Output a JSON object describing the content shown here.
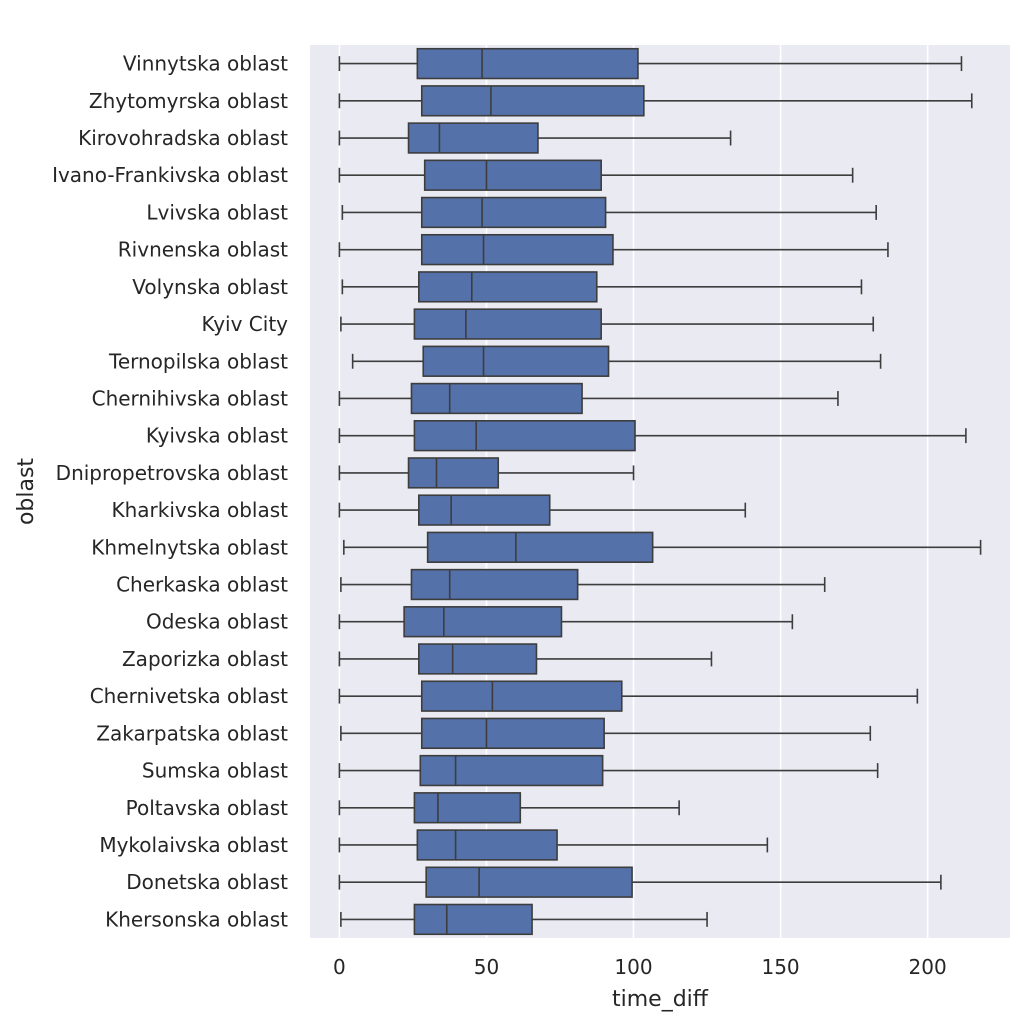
{
  "chart_data": {
    "type": "box",
    "orientation": "horizontal",
    "title": "",
    "xlabel": "time_diff",
    "ylabel": "oblast",
    "xlim": [
      -10,
      228
    ],
    "xticks": [
      0,
      50,
      100,
      150,
      200
    ],
    "xtick_labels": [
      "0",
      "50",
      "100",
      "150",
      "200"
    ],
    "grid": true,
    "colors": {
      "plot_background": "#eaeaf2",
      "grid": "#ffffff",
      "box_fill": "#5471a9",
      "line": "#3d3d3d"
    },
    "series": [
      {
        "name": "Vinnytska oblast",
        "min": 0,
        "q1": 26.5,
        "median": 48.5,
        "q3": 101.5,
        "max": 211.5
      },
      {
        "name": "Zhytomyrska oblast",
        "min": 0,
        "q1": 28,
        "median": 51.5,
        "q3": 103.5,
        "max": 215
      },
      {
        "name": "Kirovohradska oblast",
        "min": 0,
        "q1": 23.5,
        "median": 34,
        "q3": 67.5,
        "max": 133
      },
      {
        "name": "Ivano-Frankivska oblast",
        "min": 0,
        "q1": 29,
        "median": 50,
        "q3": 89,
        "max": 174.5
      },
      {
        "name": "Lvivska oblast",
        "min": 1,
        "q1": 28,
        "median": 48.5,
        "q3": 90.5,
        "max": 182.5
      },
      {
        "name": "Rivnenska oblast",
        "min": 0,
        "q1": 28,
        "median": 49,
        "q3": 93,
        "max": 186.5
      },
      {
        "name": "Volynska oblast",
        "min": 1,
        "q1": 27,
        "median": 45,
        "q3": 87.5,
        "max": 177.5
      },
      {
        "name": "Kyiv City",
        "min": 0.5,
        "q1": 25.5,
        "median": 43,
        "q3": 89,
        "max": 181.5
      },
      {
        "name": "Ternopilska oblast",
        "min": 4.5,
        "q1": 28.5,
        "median": 49,
        "q3": 91.5,
        "max": 184
      },
      {
        "name": "Chernihivska oblast",
        "min": 0,
        "q1": 24.5,
        "median": 37.5,
        "q3": 82.5,
        "max": 169.5
      },
      {
        "name": "Kyivska oblast",
        "min": 0,
        "q1": 25.5,
        "median": 46.5,
        "q3": 100.5,
        "max": 213
      },
      {
        "name": "Dnipropetrovska oblast",
        "min": 0,
        "q1": 23.5,
        "median": 33,
        "q3": 54,
        "max": 100
      },
      {
        "name": "Kharkivska oblast",
        "min": 0,
        "q1": 27,
        "median": 38,
        "q3": 71.5,
        "max": 138
      },
      {
        "name": "Khmelnytska oblast",
        "min": 1.5,
        "q1": 30,
        "median": 60,
        "q3": 106.5,
        "max": 218
      },
      {
        "name": "Cherkaska oblast",
        "min": 0.5,
        "q1": 24.5,
        "median": 37.5,
        "q3": 81,
        "max": 165
      },
      {
        "name": "Odeska oblast",
        "min": 0,
        "q1": 22,
        "median": 35.5,
        "q3": 75.5,
        "max": 154
      },
      {
        "name": "Zaporizka oblast",
        "min": 0,
        "q1": 27,
        "median": 38.5,
        "q3": 67,
        "max": 126.5
      },
      {
        "name": "Chernivetska oblast",
        "min": 0,
        "q1": 28,
        "median": 52,
        "q3": 96,
        "max": 196.5
      },
      {
        "name": "Zakarpatska oblast",
        "min": 0.5,
        "q1": 28,
        "median": 50,
        "q3": 90,
        "max": 180.5
      },
      {
        "name": "Sumska oblast",
        "min": 0,
        "q1": 27.5,
        "median": 39.5,
        "q3": 89.5,
        "max": 183
      },
      {
        "name": "Poltavska oblast",
        "min": 0,
        "q1": 25.5,
        "median": 33.5,
        "q3": 61.5,
        "max": 115.5
      },
      {
        "name": "Mykolaivska oblast",
        "min": 0,
        "q1": 26.5,
        "median": 39.5,
        "q3": 74,
        "max": 145.5
      },
      {
        "name": "Donetska oblast",
        "min": 0,
        "q1": 29.5,
        "median": 47.5,
        "q3": 99.5,
        "max": 204.5
      },
      {
        "name": "Khersonska oblast",
        "min": 0.5,
        "q1": 25.5,
        "median": 36.5,
        "q3": 65.5,
        "max": 125
      }
    ]
  }
}
